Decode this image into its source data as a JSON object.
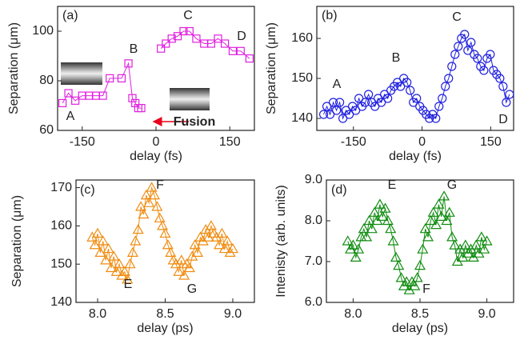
{
  "chart_data": [
    {
      "type": "line",
      "marker": "square",
      "color": "#e020e0",
      "xlabel": "delay (fs)",
      "ylabel": "Separation (μm)",
      "xlim": [
        -200,
        200
      ],
      "xticks": [
        -150,
        0,
        150
      ],
      "ylim": [
        60,
        110
      ],
      "yticks": [
        60,
        80,
        100
      ],
      "annotations": [
        "(a)",
        "A",
        "B",
        "C",
        "D",
        "Fusion"
      ],
      "x": [
        -190,
        -178,
        -164,
        -150,
        -136,
        -122,
        -108,
        -94,
        -70,
        -56,
        -48,
        -42,
        -36,
        -30,
        null,
        10,
        20,
        32,
        44,
        56,
        68,
        82,
        98,
        112,
        126,
        140,
        156,
        172,
        190
      ],
      "values": [
        71,
        75,
        72,
        74,
        74,
        74,
        74,
        81,
        81,
        87,
        73,
        71,
        69,
        69,
        null,
        93,
        95,
        97,
        98,
        100,
        100,
        97,
        95,
        95,
        97,
        95,
        92,
        92,
        89
      ]
    },
    {
      "type": "line",
      "marker": "circle",
      "color": "#2020e0",
      "xlabel": "delay (fs)",
      "ylabel": "Separation (μm)",
      "xlim": [
        -230,
        200
      ],
      "xticks": [
        -150,
        0,
        150
      ],
      "ylim": [
        137,
        168
      ],
      "yticks": [
        140,
        150,
        160
      ],
      "annotations": [
        "(b)",
        "A",
        "B",
        "C",
        "D"
      ],
      "x": [
        -215,
        -208,
        -201,
        -194,
        -187,
        -180,
        -173,
        -166,
        -159,
        -152,
        -145,
        -138,
        -131,
        -124,
        -117,
        -110,
        -103,
        -96,
        -89,
        -82,
        -75,
        -68,
        -61,
        -54,
        -47,
        -40,
        -33,
        -26,
        -19,
        -12,
        -5,
        2,
        9,
        16,
        23,
        30,
        37,
        44,
        51,
        58,
        65,
        72,
        79,
        86,
        93,
        100,
        107,
        114,
        121,
        128,
        135,
        142,
        149,
        156,
        163,
        170,
        177,
        184,
        191
      ],
      "values": [
        141,
        143,
        141,
        144,
        142,
        144,
        140,
        142,
        141,
        143,
        142,
        145,
        143,
        144,
        146,
        144,
        143,
        145,
        144,
        146,
        145,
        147,
        148,
        149,
        148,
        150,
        149,
        147,
        144,
        145,
        143,
        142,
        141,
        140,
        141,
        140,
        143,
        145,
        148,
        150,
        153,
        156,
        158,
        160,
        161,
        157,
        159,
        156,
        155,
        153,
        152,
        155,
        156,
        152,
        151,
        150,
        148,
        144,
        146
      ]
    },
    {
      "type": "line",
      "marker": "triangle",
      "color": "#f08c10",
      "xlabel": "delay (ps)",
      "ylabel": "Separation (μm)",
      "xlim": [
        7.84,
        9.16
      ],
      "xticks": [
        {
          "value": 8,
          "label": "8.0"
        },
        8.5,
        {
          "value": 9,
          "label": "9.0"
        }
      ],
      "ylim": [
        140,
        172
      ],
      "yticks": [
        140,
        150,
        160,
        170
      ],
      "annotations": [
        "(c)",
        "F",
        "E",
        "G"
      ],
      "x": [
        7.96,
        7.98,
        8.0,
        8.02,
        8.04,
        8.06,
        8.08,
        8.1,
        8.12,
        8.14,
        8.16,
        8.18,
        8.2,
        8.22,
        8.24,
        8.26,
        8.28,
        8.3,
        8.32,
        8.34,
        8.36,
        8.38,
        8.4,
        8.42,
        8.44,
        8.46,
        8.48,
        8.5,
        8.52,
        8.54,
        8.56,
        8.58,
        8.6,
        8.62,
        8.64,
        8.66,
        8.68,
        8.7,
        8.72,
        8.74,
        8.76,
        8.78,
        8.8,
        8.82,
        8.84,
        8.86,
        8.88,
        8.9,
        8.92,
        8.94,
        8.96,
        8.98,
        9.0
      ],
      "values": [
        157,
        155,
        158,
        153,
        156,
        151,
        154,
        149,
        152,
        148,
        150,
        147,
        148,
        146,
        150,
        153,
        156,
        159,
        165,
        163,
        168,
        166,
        170,
        168,
        165,
        162,
        160,
        158,
        155,
        153,
        151,
        150,
        148,
        151,
        147,
        150,
        149,
        152,
        155,
        153,
        157,
        156,
        159,
        157,
        160,
        158,
        157,
        155,
        158,
        154,
        156,
        153,
        154
      ]
    },
    {
      "type": "line",
      "marker": "triangle",
      "color": "#108c10",
      "xlabel": "delay (ps)",
      "ylabel": "Intenisty (arb. units)",
      "xlim": [
        7.8,
        9.2
      ],
      "xticks": [
        {
          "value": 8,
          "label": "8.0"
        },
        8.5,
        {
          "value": 9,
          "label": "9.0"
        }
      ],
      "ylim": [
        6,
        9
      ],
      "yticks": [
        {
          "value": 6,
          "label": "6.0"
        },
        {
          "value": 7,
          "label": "7.0"
        },
        {
          "value": 8,
          "label": "8.0"
        },
        {
          "value": 9,
          "label": "9.0"
        }
      ],
      "annotations": [
        "(d)",
        "E",
        "F",
        "G"
      ],
      "x": [
        7.96,
        7.98,
        8.0,
        8.02,
        8.04,
        8.06,
        8.08,
        8.1,
        8.12,
        8.14,
        8.16,
        8.18,
        8.2,
        8.22,
        8.24,
        8.26,
        8.28,
        8.3,
        8.32,
        8.34,
        8.36,
        8.38,
        8.4,
        8.42,
        8.44,
        8.46,
        8.48,
        8.5,
        8.52,
        8.54,
        8.56,
        8.58,
        8.6,
        8.62,
        8.64,
        8.66,
        8.68,
        8.7,
        8.72,
        8.74,
        8.76,
        8.78,
        8.8,
        8.82,
        8.84,
        8.86,
        8.88,
        8.9,
        8.92,
        8.94,
        8.96,
        8.98,
        9.0
      ],
      "values": [
        7.5,
        7.3,
        7.4,
        7.1,
        7.3,
        7.6,
        7.8,
        7.6,
        8.0,
        7.8,
        8.2,
        8.0,
        8.4,
        8.1,
        8.3,
        8.0,
        7.8,
        7.5,
        7.1,
        6.9,
        6.6,
        6.4,
        6.5,
        6.3,
        6.5,
        6.4,
        6.6,
        6.9,
        7.3,
        7.8,
        7.6,
        8.0,
        8.2,
        7.9,
        8.4,
        8.1,
        8.6,
        8.0,
        8.2,
        7.6,
        7.4,
        7.0,
        7.3,
        7.1,
        7.4,
        7.2,
        7.3,
        7.1,
        7.4,
        7.2,
        7.6,
        7.3,
        7.5
      ]
    }
  ]
}
